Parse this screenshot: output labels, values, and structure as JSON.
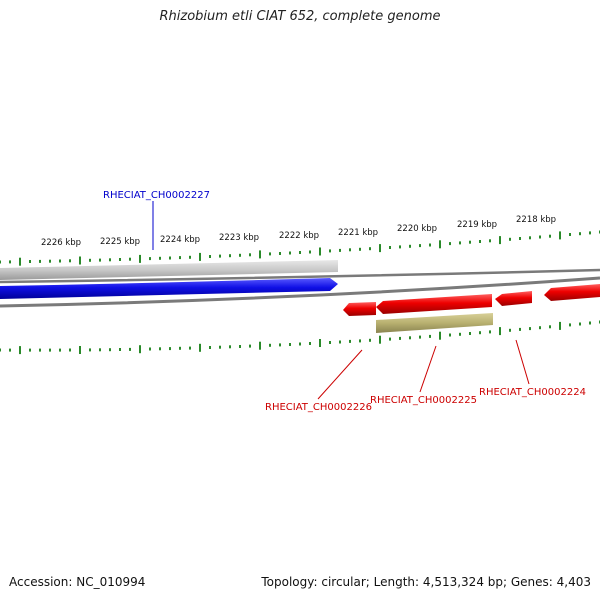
{
  "title": "Rhizobium etli CIAT 652, complete genome",
  "footer": {
    "accession": "Accession: NC_010994",
    "summary": "Topology: circular; Length: 4,513,324 bp; Genes: 4,403"
  },
  "scale_labels": [
    "2226 kbp",
    "2225 kbp",
    "2224 kbp",
    "2223 kbp",
    "2222 kbp",
    "2221 kbp",
    "2220 kbp",
    "2219 kbp",
    "2218 kbp"
  ],
  "genes": [
    {
      "label": "RHECIAT_CH0002227",
      "strand": "forward",
      "color": "#0000cc"
    },
    {
      "label": "RHECIAT_CH0002226",
      "strand": "reverse",
      "color": "#cc0000"
    },
    {
      "label": "RHECIAT_CH0002225",
      "strand": "reverse",
      "color": "#cc0000"
    },
    {
      "label": "RHECIAT_CH0002224",
      "strand": "reverse",
      "color": "#cc0000"
    }
  ],
  "colors": {
    "tick": "#2a8a2a",
    "backbone": "#8c8c8c",
    "forward_gene": "#1010e6",
    "reverse_gene": "#ee0000",
    "gene_shadow": "#c0c0c0",
    "feature_band": "#b8b070"
  }
}
